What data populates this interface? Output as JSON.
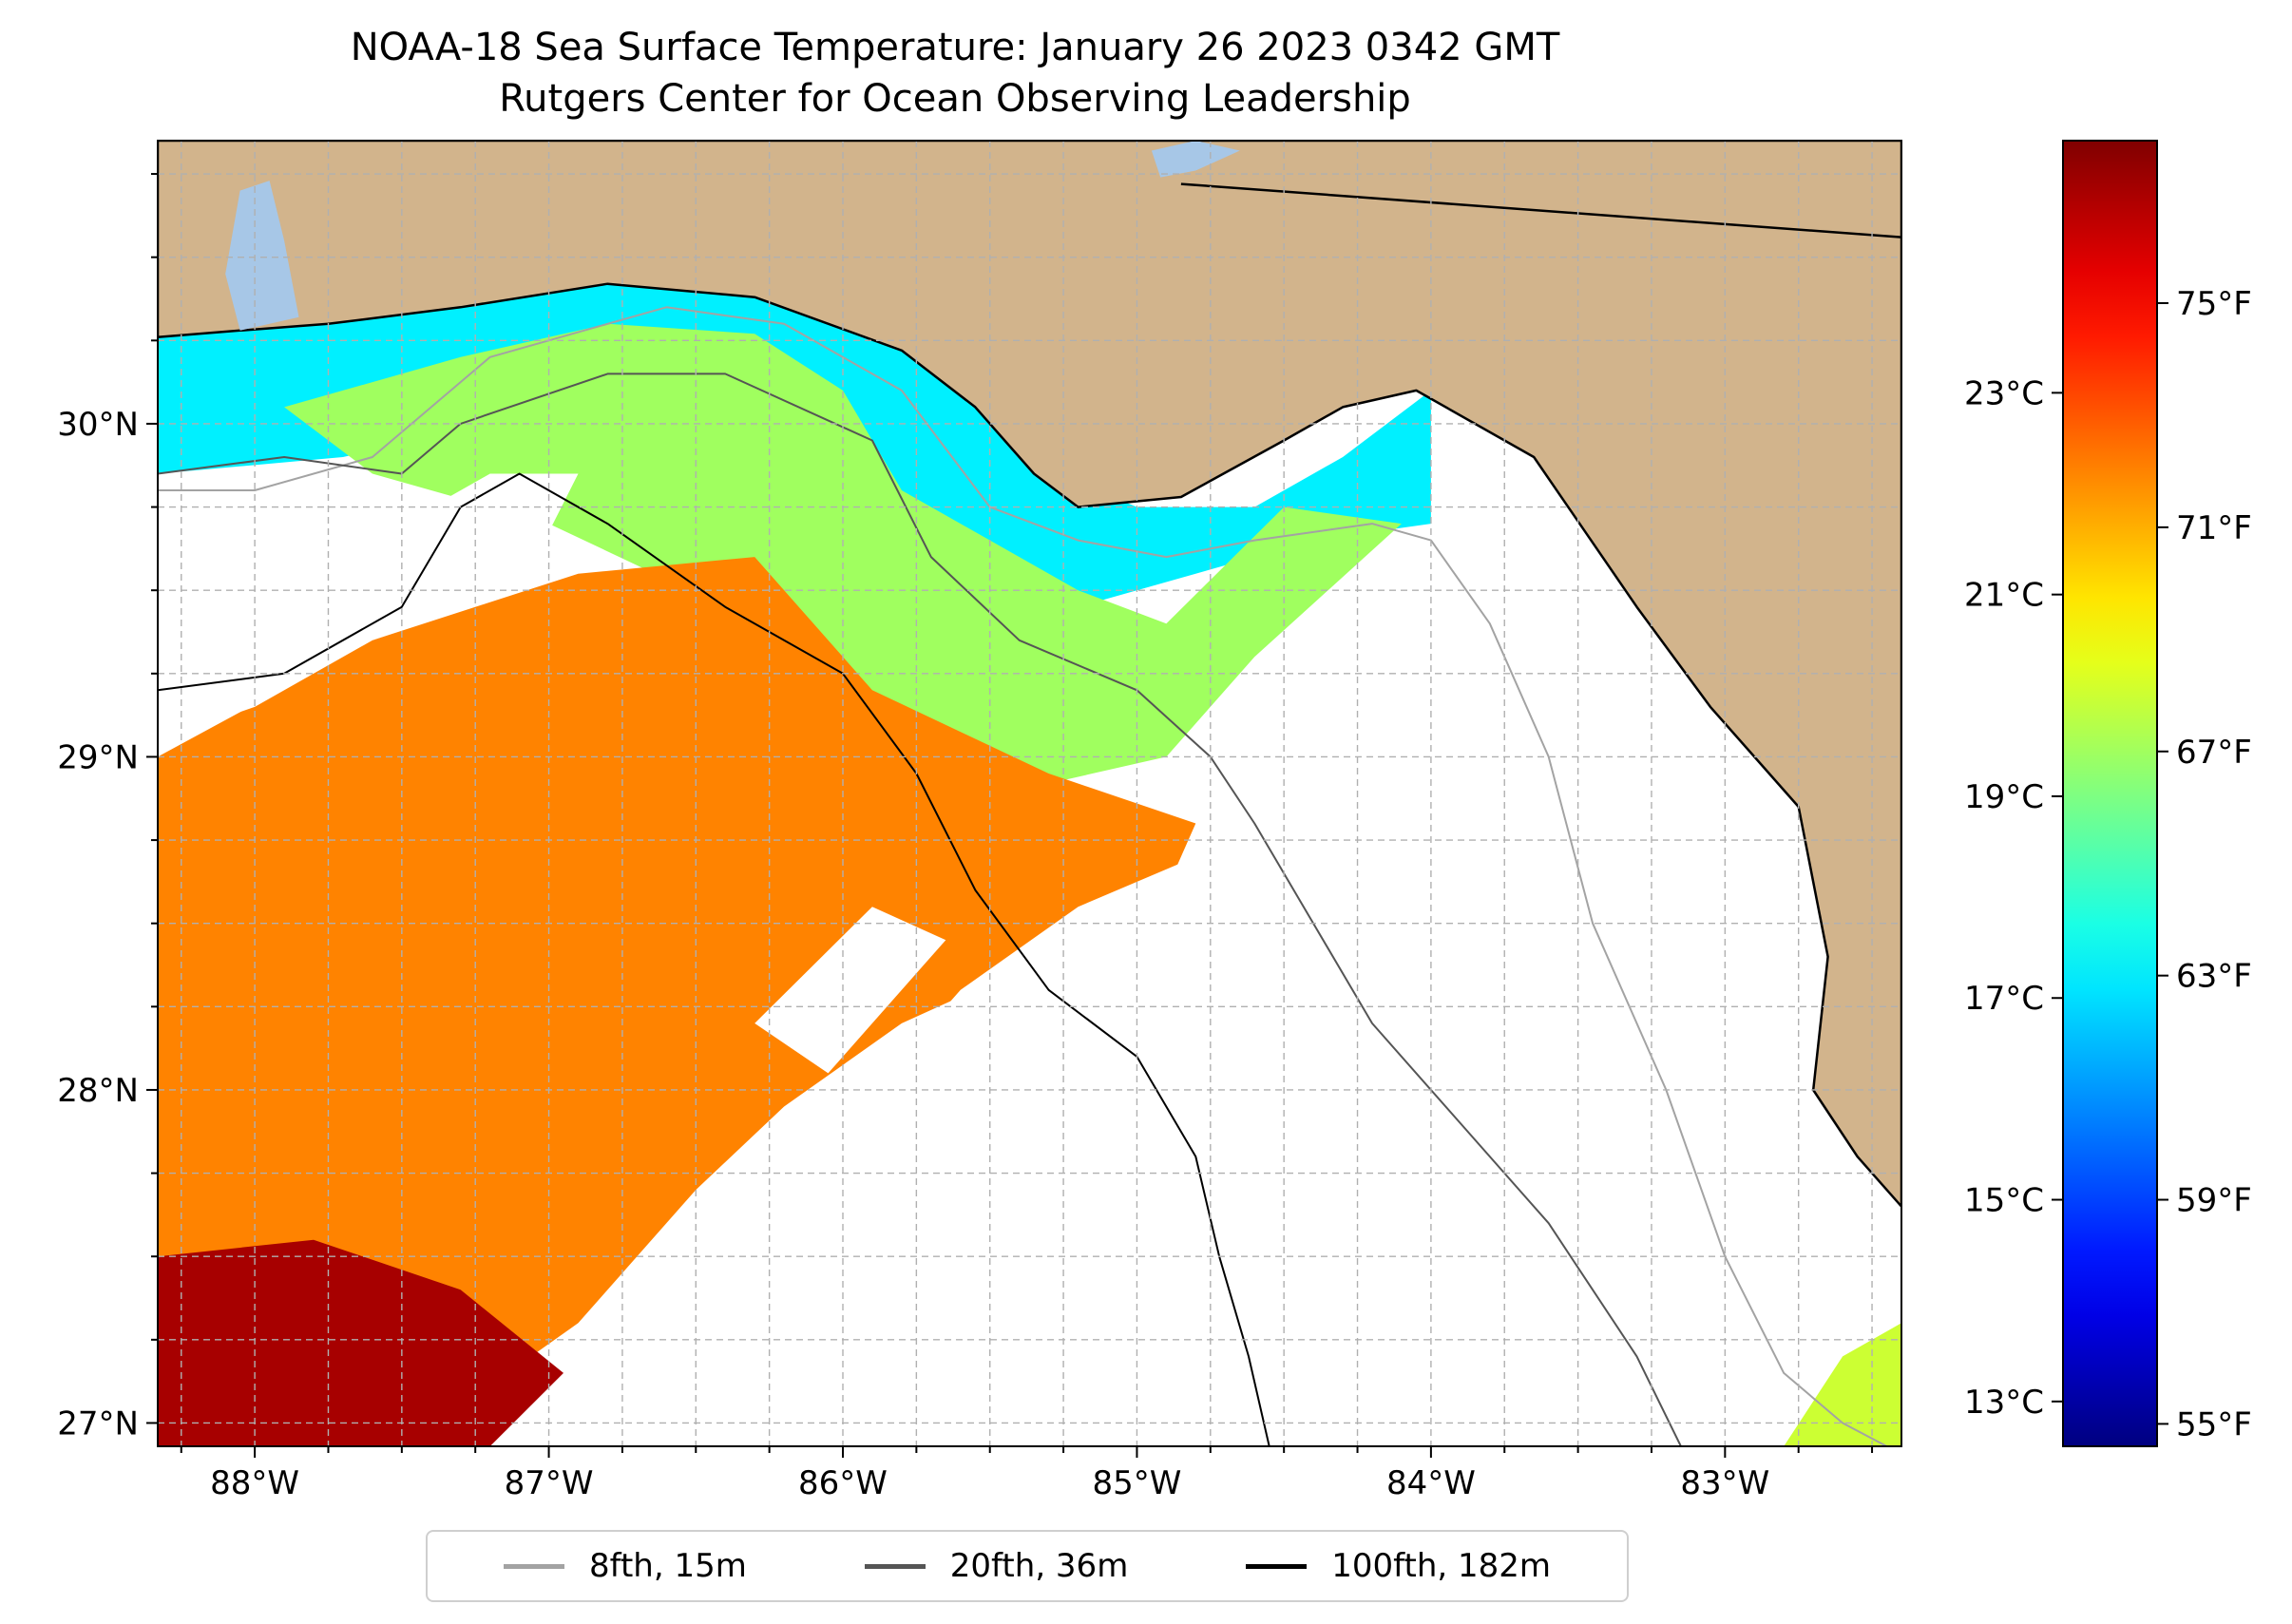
{
  "title": "NOAA-18 Sea Surface Temperature: January 26 2023 0342 GMT",
  "subtitle": "Rutgers Center for Ocean Observing Leadership",
  "colors": {
    "land": "#d2b48c",
    "water_body": "#a7c7e7",
    "no_data": "#ffffff",
    "grid": "#b0b0b0"
  },
  "map": {
    "lon_range": [
      -88.33,
      -82.4
    ],
    "lat_range": [
      26.93,
      30.85
    ],
    "lon_ticks": [
      {
        "value": -88,
        "label": "88°W"
      },
      {
        "value": -87,
        "label": "87°W"
      },
      {
        "value": -86,
        "label": "86°W"
      },
      {
        "value": -85,
        "label": "85°W"
      },
      {
        "value": -84,
        "label": "84°W"
      },
      {
        "value": -83,
        "label": "83°W"
      }
    ],
    "lat_ticks": [
      {
        "value": 27,
        "label": "27°N"
      },
      {
        "value": 28,
        "label": "28°N"
      },
      {
        "value": 29,
        "label": "29°N"
      },
      {
        "value": 30,
        "label": "30°N"
      }
    ],
    "grid": true,
    "grid_step_deg": 0.25
  },
  "colorbar": {
    "colormap": "jet",
    "range_f": [
      54.6,
      77.9
    ],
    "fahrenheit_ticks": [
      {
        "value": 55,
        "label": "55°F"
      },
      {
        "value": 59,
        "label": "59°F"
      },
      {
        "value": 63,
        "label": "63°F"
      },
      {
        "value": 67,
        "label": "67°F"
      },
      {
        "value": 71,
        "label": "71°F"
      },
      {
        "value": 75,
        "label": "75°F"
      }
    ],
    "celsius_ticks": [
      {
        "value": 13,
        "label": "13°C"
      },
      {
        "value": 15,
        "label": "15°C"
      },
      {
        "value": 17,
        "label": "17°C"
      },
      {
        "value": 19,
        "label": "19°C"
      },
      {
        "value": 21,
        "label": "21°C"
      },
      {
        "value": 23,
        "label": "23°C"
      }
    ]
  },
  "legend": {
    "placement": "bottom-center",
    "items": [
      {
        "label": "8fth, 15m",
        "color": "#a3a3a3"
      },
      {
        "label": "20fth, 36m",
        "color": "#555555"
      },
      {
        "label": "100fth, 182m",
        "color": "#000000"
      }
    ]
  },
  "sst_regions": [
    {
      "name": "coastal-cold-band",
      "temp_f": 63,
      "polygon": [
        [
          -88.33,
          30.27
        ],
        [
          -88.0,
          30.3
        ],
        [
          -87.6,
          30.38
        ],
        [
          -87.2,
          30.42
        ],
        [
          -86.8,
          30.45
        ],
        [
          -86.4,
          30.42
        ],
        [
          -86.0,
          30.38
        ],
        [
          -85.7,
          30.25
        ],
        [
          -85.4,
          29.9
        ],
        [
          -85.0,
          29.75
        ],
        [
          -84.6,
          29.75
        ],
        [
          -84.3,
          29.9
        ],
        [
          -84.0,
          30.1
        ],
        [
          -84.0,
          29.7
        ],
        [
          -84.4,
          29.65
        ],
        [
          -84.8,
          29.55
        ],
        [
          -85.2,
          29.45
        ],
        [
          -85.6,
          29.5
        ],
        [
          -86.0,
          29.7
        ],
        [
          -86.6,
          29.95
        ],
        [
          -87.2,
          30.0
        ],
        [
          -87.7,
          29.9
        ],
        [
          -88.33,
          29.85
        ]
      ]
    },
    {
      "name": "shelf-green-band",
      "temp_f": 67,
      "polygon": [
        [
          -87.9,
          30.05
        ],
        [
          -87.3,
          30.2
        ],
        [
          -86.8,
          30.3
        ],
        [
          -86.3,
          30.27
        ],
        [
          -86.0,
          30.1
        ],
        [
          -85.8,
          29.8
        ],
        [
          -85.2,
          29.5
        ],
        [
          -84.9,
          29.4
        ],
        [
          -84.5,
          29.75
        ],
        [
          -84.1,
          29.7
        ],
        [
          -84.6,
          29.3
        ],
        [
          -84.9,
          29.0
        ],
        [
          -85.4,
          28.9
        ],
        [
          -85.9,
          29.1
        ],
        [
          -86.4,
          29.45
        ],
        [
          -87.0,
          29.7
        ],
        [
          -87.6,
          29.85
        ]
      ]
    },
    {
      "name": "warm-south-band",
      "temp_f": 72,
      "polygon": [
        [
          -88.33,
          29.0
        ],
        [
          -87.6,
          29.35
        ],
        [
          -86.9,
          29.55
        ],
        [
          -86.3,
          29.6
        ],
        [
          -85.9,
          29.2
        ],
        [
          -85.3,
          28.95
        ],
        [
          -84.8,
          28.8
        ],
        [
          -84.9,
          28.6
        ],
        [
          -85.3,
          28.4
        ],
        [
          -85.8,
          28.2
        ],
        [
          -86.2,
          27.95
        ],
        [
          -86.5,
          27.7
        ],
        [
          -86.9,
          27.3
        ],
        [
          -87.3,
          27.05
        ],
        [
          -87.6,
          26.93
        ],
        [
          -88.33,
          26.93
        ]
      ]
    },
    {
      "name": "hot-southwest-core",
      "temp_f": 77,
      "polygon": [
        [
          -88.33,
          27.5
        ],
        [
          -87.8,
          27.55
        ],
        [
          -87.3,
          27.4
        ],
        [
          -86.95,
          27.15
        ],
        [
          -87.2,
          26.93
        ],
        [
          -88.33,
          26.93
        ]
      ]
    },
    {
      "name": "southeast-corner-patch",
      "temp_f": 68,
      "polygon": [
        [
          -82.8,
          26.93
        ],
        [
          -82.6,
          27.2
        ],
        [
          -82.4,
          27.3
        ],
        [
          -82.4,
          26.93
        ]
      ]
    }
  ],
  "no_data_regions": [
    {
      "name": "white-gap-east",
      "polygon": [
        [
          -84.8,
          28.7
        ],
        [
          -84.5,
          29.2
        ],
        [
          -84.2,
          29.6
        ],
        [
          -83.7,
          29.8
        ],
        [
          -83.2,
          29.6
        ],
        [
          -82.95,
          29.2
        ],
        [
          -82.7,
          28.6
        ],
        [
          -82.7,
          27.8
        ],
        [
          -82.6,
          27.3
        ],
        [
          -82.8,
          26.93
        ],
        [
          -87.0,
          26.93
        ],
        [
          -86.5,
          27.3
        ],
        [
          -86.1,
          27.8
        ],
        [
          -85.6,
          28.3
        ],
        [
          -85.2,
          28.55
        ]
      ]
    },
    {
      "name": "white-gap-west-shelf",
      "polygon": [
        [
          -88.33,
          29.3
        ],
        [
          -88.0,
          29.5
        ],
        [
          -87.5,
          29.7
        ],
        [
          -87.2,
          29.85
        ],
        [
          -86.9,
          29.85
        ],
        [
          -87.1,
          29.5
        ],
        [
          -87.6,
          29.35
        ],
        [
          -88.0,
          29.15
        ],
        [
          -88.33,
          29.05
        ]
      ]
    },
    {
      "name": "white-patch-mid",
      "polygon": [
        [
          -86.3,
          28.2
        ],
        [
          -85.9,
          28.55
        ],
        [
          -85.65,
          28.45
        ],
        [
          -86.05,
          28.05
        ]
      ]
    }
  ],
  "land": [
    {
      "name": "land-north",
      "polygon": [
        [
          -88.33,
          30.85
        ],
        [
          -82.4,
          30.85
        ],
        [
          -82.4,
          27.65
        ],
        [
          -82.55,
          27.8
        ],
        [
          -82.7,
          28.0
        ],
        [
          -82.65,
          28.4
        ],
        [
          -82.75,
          28.85
        ],
        [
          -83.05,
          29.15
        ],
        [
          -83.3,
          29.45
        ],
        [
          -83.65,
          29.9
        ],
        [
          -84.05,
          30.1
        ],
        [
          -84.3,
          30.05
        ],
        [
          -84.5,
          29.95
        ],
        [
          -84.85,
          29.78
        ],
        [
          -85.2,
          29.75
        ],
        [
          -85.35,
          29.85
        ],
        [
          -85.55,
          30.05
        ],
        [
          -85.8,
          30.22
        ],
        [
          -86.3,
          30.38
        ],
        [
          -86.8,
          30.42
        ],
        [
          -87.3,
          30.35
        ],
        [
          -87.75,
          30.3
        ],
        [
          -88.05,
          30.28
        ],
        [
          -88.33,
          30.26
        ]
      ]
    }
  ],
  "inland_water": [
    {
      "name": "mobile-bay",
      "polygon": [
        [
          -88.05,
          30.7
        ],
        [
          -87.95,
          30.73
        ],
        [
          -87.9,
          30.55
        ],
        [
          -87.85,
          30.32
        ],
        [
          -88.05,
          30.28
        ],
        [
          -88.1,
          30.45
        ]
      ]
    },
    {
      "name": "lake",
      "polygon": [
        [
          -84.95,
          30.82
        ],
        [
          -84.8,
          30.85
        ],
        [
          -84.65,
          30.82
        ],
        [
          -84.8,
          30.76
        ],
        [
          -84.92,
          30.74
        ]
      ]
    }
  ],
  "boundary_line": [
    [
      -84.85,
      30.72
    ],
    [
      -82.4,
      30.56
    ]
  ],
  "isobaths": {
    "fth8": [
      [
        -88.33,
        29.8
      ],
      [
        -88.0,
        29.8
      ],
      [
        -87.6,
        29.9
      ],
      [
        -87.2,
        30.2
      ],
      [
        -86.6,
        30.35
      ],
      [
        -86.2,
        30.3
      ],
      [
        -85.8,
        30.1
      ],
      [
        -85.5,
        29.75
      ],
      [
        -85.2,
        29.65
      ],
      [
        -84.9,
        29.6
      ],
      [
        -84.6,
        29.65
      ],
      [
        -84.2,
        29.7
      ],
      [
        -84.0,
        29.65
      ],
      [
        -83.8,
        29.4
      ],
      [
        -83.6,
        29.0
      ],
      [
        -83.45,
        28.5
      ],
      [
        -83.2,
        28.0
      ],
      [
        -83.0,
        27.5
      ],
      [
        -82.8,
        27.15
      ],
      [
        -82.6,
        27.0
      ],
      [
        -82.45,
        26.93
      ]
    ],
    "fth20": [
      [
        -88.33,
        29.85
      ],
      [
        -87.9,
        29.9
      ],
      [
        -87.5,
        29.85
      ],
      [
        -87.3,
        30.0
      ],
      [
        -86.8,
        30.15
      ],
      [
        -86.4,
        30.15
      ],
      [
        -85.9,
        29.95
      ],
      [
        -85.7,
        29.6
      ],
      [
        -85.4,
        29.35
      ],
      [
        -85.0,
        29.2
      ],
      [
        -84.75,
        29.0
      ],
      [
        -84.6,
        28.8
      ],
      [
        -84.4,
        28.5
      ],
      [
        -84.2,
        28.2
      ],
      [
        -83.9,
        27.9
      ],
      [
        -83.6,
        27.6
      ],
      [
        -83.3,
        27.2
      ],
      [
        -83.15,
        26.93
      ]
    ],
    "fth100": [
      [
        -88.33,
        29.2
      ],
      [
        -87.9,
        29.25
      ],
      [
        -87.5,
        29.45
      ],
      [
        -87.3,
        29.75
      ],
      [
        -87.1,
        29.85
      ],
      [
        -86.8,
        29.7
      ],
      [
        -86.4,
        29.45
      ],
      [
        -86.0,
        29.25
      ],
      [
        -85.75,
        28.95
      ],
      [
        -85.55,
        28.6
      ],
      [
        -85.3,
        28.3
      ],
      [
        -85.0,
        28.1
      ],
      [
        -84.8,
        27.8
      ],
      [
        -84.72,
        27.5
      ],
      [
        -84.62,
        27.2
      ],
      [
        -84.55,
        26.93
      ]
    ]
  }
}
